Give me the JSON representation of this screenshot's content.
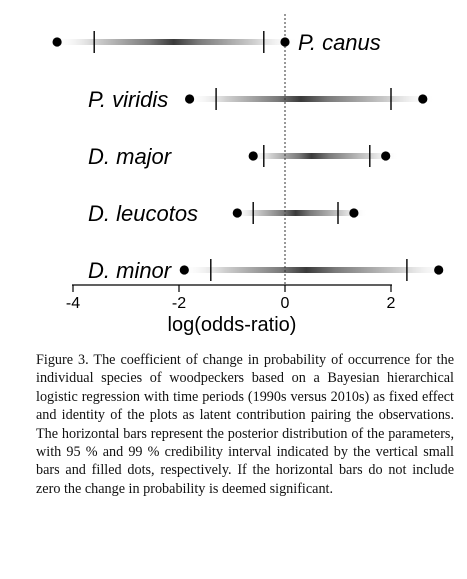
{
  "chart_data": {
    "type": "interval",
    "xlabel": "log(odds-ratio)",
    "xlim": [
      -4.4,
      3.3
    ],
    "xticks": [
      -4,
      -2,
      0,
      2
    ],
    "tick_labels": [
      "-4",
      "-2",
      "0",
      "2"
    ],
    "reference_line": 0,
    "species": [
      {
        "name": "P. canus",
        "dots": [
          -4.3,
          0
        ],
        "bars": [
          -3.6,
          -0.4
        ],
        "center": -2.1
      },
      {
        "name": "P. viridis",
        "dots": [
          -1.8,
          2.6
        ],
        "bars": [
          -1.3,
          2.0
        ],
        "center": 0.3
      },
      {
        "name": "D. major",
        "dots": [
          -0.6,
          1.9
        ],
        "bars": [
          -0.4,
          1.6
        ],
        "center": 0.5
      },
      {
        "name": "D. leucotos",
        "dots": [
          -0.9,
          1.3
        ],
        "bars": [
          -0.6,
          1.0
        ],
        "center": 0.2
      },
      {
        "name": "D. minor",
        "dots": [
          -1.9,
          2.9
        ],
        "bars": [
          -1.4,
          2.3
        ],
        "center": 0.4
      }
    ]
  },
  "caption": "Figure 3. The coefficient of change in probability of occurrence for the individual species of woodpeckers based on a Bayesian hierarchical logistic regression with time periods (1990s versus 2010s) as fixed effect and identity of the plots as latent contribution pairing the observations. The horizontal bars represent the posterior distribution of the parameters, with 95 % and 99 % credibility interval indicated by the vertical small bars and filled dots, respectively. If the horizontal bars do not include zero the change in probability is deemed significant."
}
